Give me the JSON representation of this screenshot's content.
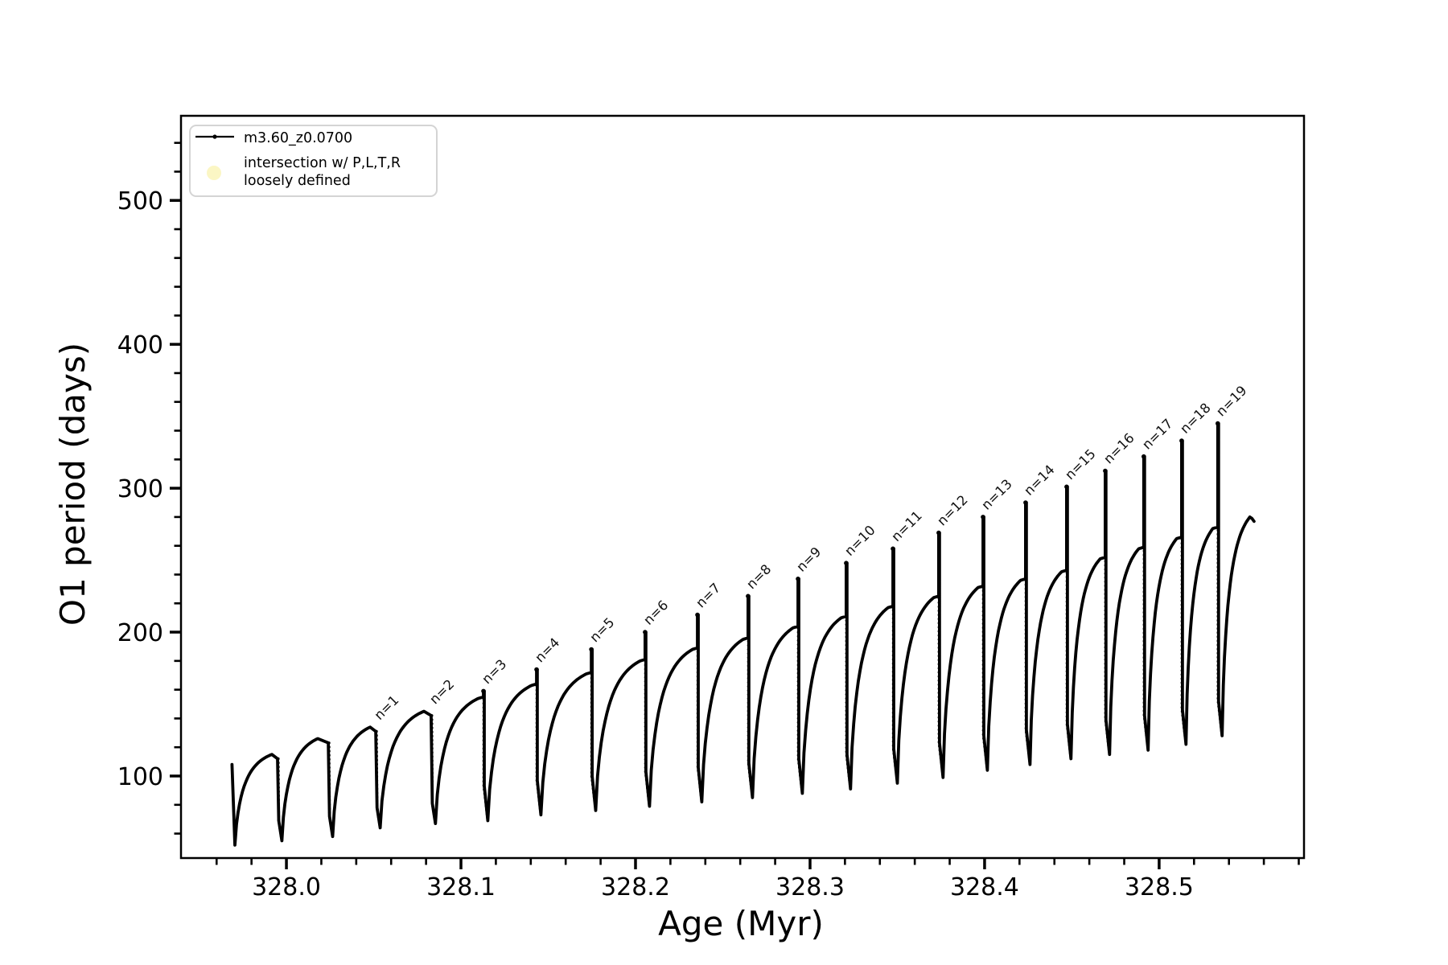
{
  "chart_data": {
    "type": "line",
    "title": "",
    "xlabel": "Age (Myr)",
    "ylabel": "O1 period (days)",
    "xlim": [
      327.9396,
      328.583
    ],
    "ylim": [
      43,
      558.8
    ],
    "grid": false,
    "legend_position": "upper-left",
    "series_name": "m3.60_z0.0700",
    "line_color": "#000000",
    "xticks": {
      "major": [
        328.0,
        328.1,
        328.2,
        328.3,
        328.4,
        328.5
      ],
      "labels": [
        "328.0",
        "328.1",
        "328.2",
        "328.3",
        "328.4",
        "328.5"
      ],
      "minor_start": 327.96,
      "minor_end": 328.58,
      "minor_step": 0.02
    },
    "yticks": {
      "major": [
        100,
        200,
        300,
        400,
        500
      ],
      "labels": [
        "100",
        "200",
        "300",
        "400",
        "500"
      ],
      "minor_start": 60,
      "minor_end": 540,
      "minor_step": 20
    },
    "legend": {
      "series_label": "m3.60_z0.0700",
      "scatter_label_line1": "intersection w/ P,L,T,R",
      "scatter_label_line2": "loosely defined",
      "scatter_color": "#fbf6c4"
    },
    "start_point": [
      327.9688,
      108
    ],
    "cycles": [
      {
        "label": null,
        "trough": [
          327.9705,
          52
        ],
        "peak": [
          327.9917,
          115
        ],
        "drop": 327.9949,
        "spike": null
      },
      {
        "label": null,
        "trough": [
          327.9974,
          55
        ],
        "peak": [
          328.018,
          126
        ],
        "drop": 328.024,
        "spike": null
      },
      {
        "label": "n=1",
        "trough": [
          328.0265,
          58
        ],
        "peak": [
          328.048,
          134
        ],
        "drop": 328.0512,
        "spike": null
      },
      {
        "label": "n=2",
        "trough": [
          328.0537,
          64
        ],
        "peak": [
          328.0788,
          145
        ],
        "drop": 328.0829,
        "spike": null
      },
      {
        "label": "n=3",
        "trough": [
          328.0854,
          67
        ],
        "peak": [
          328.1101,
          154
        ],
        "drop": 328.1129,
        "spike": 159
      },
      {
        "label": "n=4",
        "trough": [
          328.1154,
          69
        ],
        "peak": [
          328.1405,
          163
        ],
        "drop": 328.1433,
        "spike": 174
      },
      {
        "label": "n=5",
        "trough": [
          328.1458,
          73
        ],
        "peak": [
          328.1719,
          171
        ],
        "drop": 328.1747,
        "spike": 188
      },
      {
        "label": "n=6",
        "trough": [
          328.1772,
          76
        ],
        "peak": [
          328.2027,
          180
        ],
        "drop": 328.2055,
        "spike": 200
      },
      {
        "label": "n=7",
        "trough": [
          328.208,
          79
        ],
        "peak": [
          328.2327,
          188
        ],
        "drop": 328.2355,
        "spike": 212
      },
      {
        "label": "n=8",
        "trough": [
          328.238,
          82
        ],
        "peak": [
          328.2617,
          195
        ],
        "drop": 328.2645,
        "spike": 225
      },
      {
        "label": "n=9",
        "trough": [
          328.267,
          85
        ],
        "peak": [
          328.2903,
          203
        ],
        "drop": 328.2931,
        "spike": 237
      },
      {
        "label": "n=10",
        "trough": [
          328.2956,
          88
        ],
        "peak": [
          328.3179,
          210
        ],
        "drop": 328.3207,
        "spike": 248
      },
      {
        "label": "n=11",
        "trough": [
          328.3232,
          91
        ],
        "peak": [
          328.3447,
          217
        ],
        "drop": 328.3475,
        "spike": 258
      },
      {
        "label": "n=12",
        "trough": [
          328.35,
          95
        ],
        "peak": [
          328.3709,
          224
        ],
        "drop": 328.3737,
        "spike": 269
      },
      {
        "label": "n=13",
        "trough": [
          328.3762,
          99
        ],
        "peak": [
          328.3963,
          231
        ],
        "drop": 328.3991,
        "spike": 280
      },
      {
        "label": "n=14",
        "trough": [
          328.4016,
          104
        ],
        "peak": [
          328.4207,
          236
        ],
        "drop": 328.4235,
        "spike": 290
      },
      {
        "label": "n=15",
        "trough": [
          328.426,
          108
        ],
        "peak": [
          328.4442,
          242
        ],
        "drop": 328.447,
        "spike": 301
      },
      {
        "label": "n=16",
        "trough": [
          328.4495,
          112
        ],
        "peak": [
          328.4663,
          251
        ],
        "drop": 328.4691,
        "spike": 312
      },
      {
        "label": "n=17",
        "trough": [
          328.4716,
          115
        ],
        "peak": [
          328.4884,
          258
        ],
        "drop": 328.4912,
        "spike": 322
      },
      {
        "label": "n=18",
        "trough": [
          328.4937,
          118
        ],
        "peak": [
          328.5101,
          265
        ],
        "drop": 328.5129,
        "spike": 333
      },
      {
        "label": "n=19",
        "trough": [
          328.5154,
          122
        ],
        "peak": [
          328.5308,
          272
        ],
        "drop": 328.5336,
        "spike": 345
      }
    ],
    "tail": {
      "trough": [
        328.5361,
        128
      ],
      "peak": [
        328.552,
        280
      ],
      "end": [
        328.5544,
        277
      ]
    }
  }
}
